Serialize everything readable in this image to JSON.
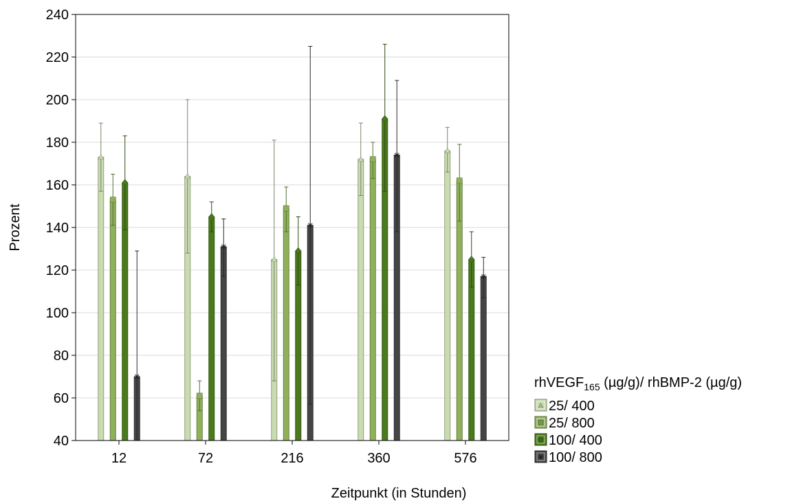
{
  "chart_data": {
    "type": "bar",
    "xlabel": "Zeitpunkt (in Stunden)",
    "ylabel": "Prozent",
    "ylim": [
      40,
      240
    ],
    "yticks": [
      40,
      60,
      80,
      100,
      120,
      140,
      160,
      180,
      200,
      220,
      240
    ],
    "grid": true,
    "categories": [
      "12",
      "72",
      "216",
      "360",
      "576"
    ],
    "legend": {
      "title_prefix": "rhVEGF",
      "title_sub": "165",
      "title_suffix": " (µg/g)/ rhBMP-2 (µg/g)",
      "placement": "right"
    },
    "series": [
      {
        "name": "25/ 400",
        "color": "#c9dcb0",
        "marker": "triangle",
        "values": [
          173,
          164,
          125,
          172,
          176
        ],
        "error_low": [
          157,
          128,
          68,
          155,
          166
        ],
        "error_high": [
          189,
          200,
          181,
          189,
          187
        ]
      },
      {
        "name": "25/ 800",
        "color": "#8fb15a",
        "marker": "square",
        "values": [
          153,
          61,
          149,
          172,
          162
        ],
        "error_low": [
          141,
          54,
          138,
          163,
          143
        ],
        "error_high": [
          165,
          68,
          159,
          180,
          179
        ]
      },
      {
        "name": "100/ 400",
        "color": "#4a7a1c",
        "marker": "diamond",
        "values": [
          161,
          145,
          129,
          191,
          125
        ],
        "error_low": [
          139,
          138,
          113,
          157,
          112
        ],
        "error_high": [
          183,
          152,
          145,
          226,
          138
        ]
      },
      {
        "name": "100/ 800",
        "color": "#454545",
        "marker": "star",
        "values": [
          70,
          131,
          141,
          174,
          117
        ],
        "error_low": [
          40,
          117,
          57,
          138,
          107
        ],
        "error_high": [
          129,
          144,
          225,
          209,
          126
        ]
      }
    ]
  }
}
